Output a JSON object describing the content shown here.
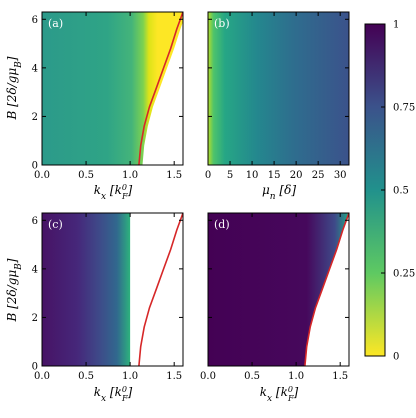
{
  "chart_data": [
    {
      "type": "heatmap",
      "panel_label": "(a)",
      "xlabel": "k_x [k_F^0]",
      "ylabel": "B [2δ/gμ_B]",
      "xlim": [
        0,
        1.6
      ],
      "ylim": [
        0,
        6.3
      ],
      "xticks": [
        "0.0",
        "0.5",
        "1.0",
        "1.5"
      ],
      "yticks": [
        "0",
        "2",
        "4",
        "6"
      ],
      "description_values": {
        "fill_value_interior": 0.55,
        "edge_value": 0.05
      },
      "boundary_curve": {
        "x": [
          1.1,
          1.12,
          1.16,
          1.22,
          1.3,
          1.38,
          1.46,
          1.53,
          1.6
        ],
        "y": [
          0,
          0.8,
          1.6,
          2.4,
          3.2,
          4.0,
          4.8,
          5.6,
          6.3
        ]
      },
      "curve_color": "#d62728"
    },
    {
      "type": "heatmap",
      "panel_label": "(b)",
      "xlabel": "μ_n [δ]",
      "xlim": [
        0,
        32
      ],
      "ylim": [
        0,
        6.3
      ],
      "xticks": [
        "0",
        "5",
        "10",
        "15",
        "20",
        "25",
        "30"
      ]
    },
    {
      "type": "heatmap",
      "panel_label": "(c)",
      "xlabel": "k_x [k_F^0]",
      "ylabel": "B [2δ/gμ_B]",
      "xlim": [
        0,
        1.6
      ],
      "ylim": [
        0,
        6.3
      ],
      "xticks": [
        "0.0",
        "0.5",
        "1.0",
        "1.5"
      ],
      "yticks": [
        "0",
        "2",
        "4",
        "6"
      ],
      "boundary_curve": {
        "x": [
          1.1,
          1.12,
          1.16,
          1.22,
          1.3,
          1.38,
          1.46,
          1.53,
          1.6
        ],
        "y": [
          0,
          0.8,
          1.6,
          2.4,
          3.2,
          4.0,
          4.8,
          5.6,
          6.3
        ]
      },
      "curve_color": "#d62728"
    },
    {
      "type": "heatmap",
      "panel_label": "(d)",
      "xlabel": "k_x [k_F^0]",
      "xlim": [
        0,
        1.6
      ],
      "ylim": [
        0,
        6.3
      ],
      "xticks": [
        "0.0",
        "0.5",
        "1.0",
        "1.5"
      ],
      "boundary_curve": {
        "x": [
          1.1,
          1.12,
          1.16,
          1.22,
          1.3,
          1.38,
          1.46,
          1.53,
          1.6
        ],
        "y": [
          0,
          0.8,
          1.6,
          2.4,
          3.2,
          4.0,
          4.8,
          5.6,
          6.3
        ]
      },
      "curve_color": "#d62728"
    }
  ],
  "colorbar": {
    "colormap": "viridis_r",
    "range": [
      0,
      1
    ],
    "ticks": [
      "0",
      "0.25",
      "0.5",
      "0.75",
      "1"
    ],
    "tick_values": [
      0,
      0.25,
      0.5,
      0.75,
      1
    ]
  }
}
